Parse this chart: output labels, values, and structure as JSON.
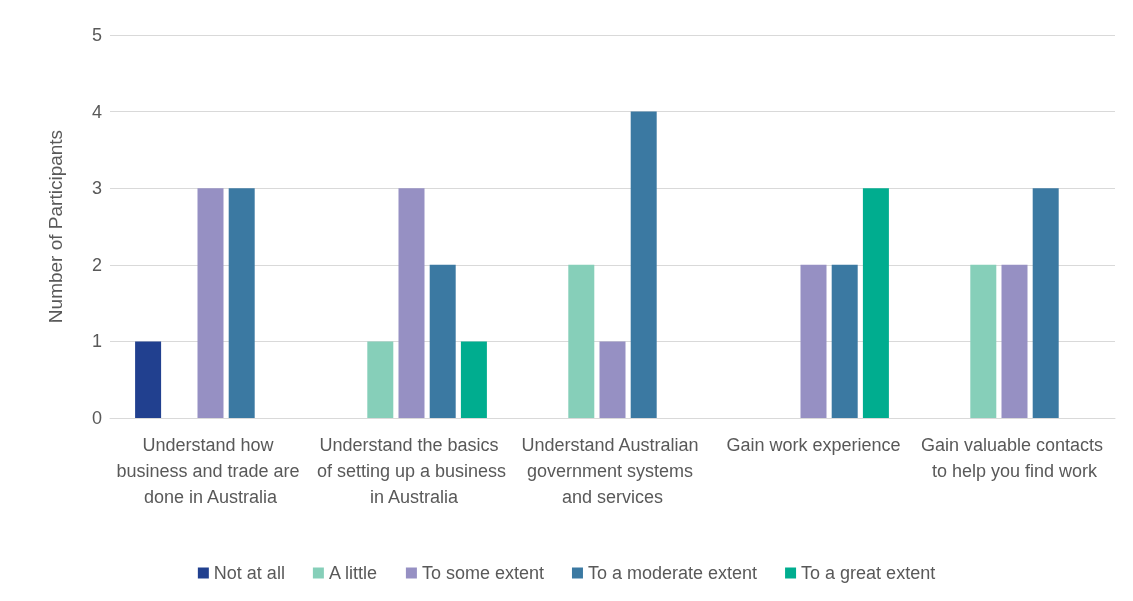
{
  "chart_data": {
    "type": "bar",
    "ylabel": "Number of Participants",
    "categories": [
      "Understand how business and trade are done in Australia",
      "Understand the basics of setting up a business in Australia",
      "Understand Australian government systems and services",
      "Gain work experience",
      "Gain valuable contacts to help you find work"
    ],
    "series": [
      {
        "name": "Not at all",
        "color": "#21408f",
        "values": [
          1,
          0,
          0,
          0,
          0
        ]
      },
      {
        "name": "A little",
        "color": "#86cfb9",
        "values": [
          0,
          1,
          2,
          0,
          2
        ]
      },
      {
        "name": "To some extent",
        "color": "#9690c3",
        "values": [
          3,
          3,
          1,
          2,
          2
        ]
      },
      {
        "name": "To a moderate extent",
        "color": "#3b79a2",
        "values": [
          3,
          2,
          4,
          2,
          3
        ]
      },
      {
        "name": "To a great extent",
        "color": "#00ad8f",
        "values": [
          0,
          1,
          0,
          3,
          0
        ]
      }
    ],
    "ylim": [
      0,
      5
    ],
    "yticks": [
      0,
      1,
      2,
      3,
      4,
      5
    ],
    "grid": "y",
    "legend": "bottom"
  }
}
